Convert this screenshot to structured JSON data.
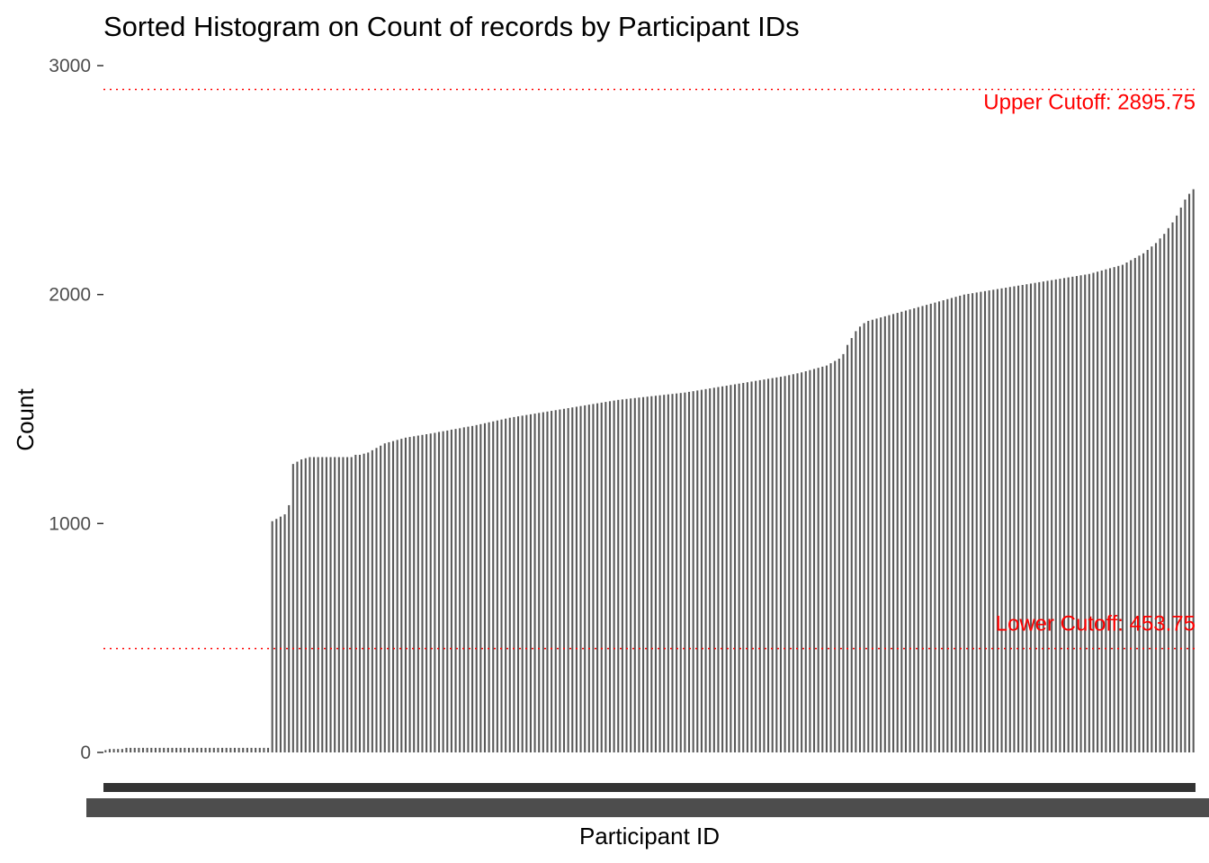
{
  "chart_data": {
    "type": "bar",
    "title": "Sorted Histogram on Count of records by Participant IDs",
    "xlabel": "Participant ID",
    "ylabel": "Count",
    "ylim": [
      0,
      3000
    ],
    "yticks": [
      0,
      1000,
      2000,
      3000
    ],
    "ytick_labels": [
      "0",
      "1000",
      "2000",
      "3000"
    ],
    "grid": false,
    "sorted": "ascending",
    "bar_color": "#595959",
    "cutoff_color": "#ff0000",
    "cutoffs": [
      {
        "kind": "upper",
        "value": 2895.75,
        "label": "Upper Cutoff: 2895.75"
      },
      {
        "kind": "lower",
        "value": 453.75,
        "label": "Lower Cutoff: 453.75"
      }
    ],
    "values": [
      10,
      15,
      15,
      15,
      15,
      20,
      20,
      20,
      20,
      20,
      20,
      20,
      20,
      20,
      20,
      20,
      20,
      20,
      20,
      20,
      20,
      20,
      20,
      20,
      20,
      20,
      20,
      20,
      20,
      20,
      20,
      20,
      20,
      20,
      20,
      20,
      20,
      20,
      20,
      20,
      1010,
      1020,
      1030,
      1040,
      1080,
      1260,
      1270,
      1280,
      1285,
      1290,
      1290,
      1290,
      1290,
      1290,
      1290,
      1290,
      1290,
      1290,
      1290,
      1290,
      1300,
      1300,
      1305,
      1310,
      1320,
      1330,
      1340,
      1350,
      1355,
      1360,
      1365,
      1370,
      1375,
      1378,
      1381,
      1384,
      1387,
      1390,
      1393,
      1396,
      1400,
      1403,
      1406,
      1410,
      1413,
      1416,
      1420,
      1423,
      1426,
      1430,
      1434,
      1438,
      1442,
      1446,
      1450,
      1454,
      1458,
      1462,
      1465,
      1468,
      1471,
      1474,
      1477,
      1480,
      1483,
      1486,
      1489,
      1492,
      1495,
      1498,
      1501,
      1504,
      1507,
      1510,
      1513,
      1516,
      1519,
      1522,
      1525,
      1528,
      1531,
      1534,
      1537,
      1540,
      1542,
      1544,
      1546,
      1548,
      1550,
      1552,
      1554,
      1556,
      1558,
      1560,
      1562,
      1564,
      1566,
      1568,
      1570,
      1572,
      1575,
      1578,
      1581,
      1584,
      1587,
      1590,
      1593,
      1596,
      1599,
      1602,
      1605,
      1608,
      1611,
      1614,
      1617,
      1620,
      1623,
      1626,
      1629,
      1632,
      1635,
      1638,
      1641,
      1644,
      1648,
      1652,
      1656,
      1660,
      1665,
      1670,
      1675,
      1680,
      1685,
      1690,
      1700,
      1710,
      1720,
      1740,
      1780,
      1810,
      1840,
      1860,
      1875,
      1885,
      1890,
      1895,
      1900,
      1905,
      1910,
      1915,
      1920,
      1925,
      1930,
      1935,
      1940,
      1945,
      1950,
      1955,
      1960,
      1965,
      1970,
      1975,
      1980,
      1985,
      1990,
      1995,
      2000,
      2003,
      2006,
      2009,
      2012,
      2015,
      2018,
      2021,
      2024,
      2027,
      2030,
      2033,
      2036,
      2039,
      2042,
      2045,
      2048,
      2051,
      2054,
      2057,
      2060,
      2063,
      2066,
      2069,
      2072,
      2075,
      2078,
      2081,
      2084,
      2087,
      2090,
      2095,
      2100,
      2105,
      2110,
      2115,
      2120,
      2125,
      2130,
      2140,
      2150,
      2160,
      2170,
      2180,
      2195,
      2210,
      2225,
      2245,
      2265,
      2290,
      2315,
      2345,
      2380,
      2415,
      2440,
      2460
    ]
  }
}
